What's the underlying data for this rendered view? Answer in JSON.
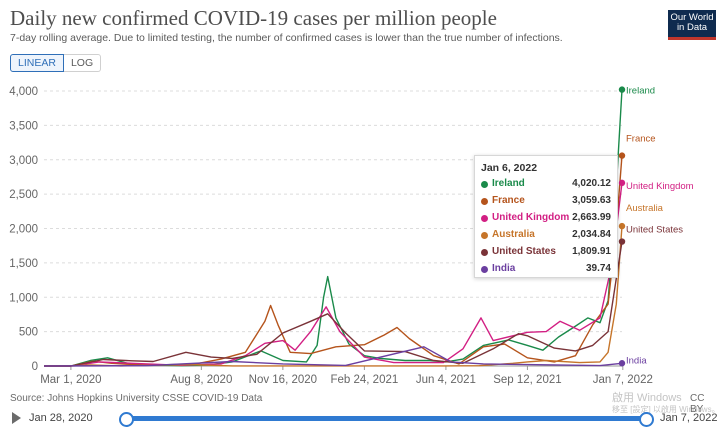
{
  "title": "Daily new confirmed COVID-19 cases per million people",
  "subtitle": "7-day rolling average. Due to limited testing, the number of confirmed cases is lower than the true number of infections.",
  "logo": {
    "line1": "Our World",
    "line2": "in Data"
  },
  "scale_toggle": {
    "linear": "LINEAR",
    "log": "LOG",
    "active": "linear"
  },
  "source": "Source: Johns Hopkins University CSSE COVID-19 Data",
  "license": "CC BY",
  "watermark": {
    "line1": "啟用 Windows",
    "line2": "移至 [設定] 以啟用 Windows。"
  },
  "timeline": {
    "start": "Jan 28, 2020",
    "end": "Jan 7, 2022"
  },
  "tooltip": {
    "date": "Jan 6, 2022",
    "rows": [
      {
        "name": "Ireland",
        "value": "4,020.12",
        "color": "#1a8a4a"
      },
      {
        "name": "France",
        "value": "3,059.63",
        "color": "#b5541c"
      },
      {
        "name": "United Kingdom",
        "value": "2,663.99",
        "color": "#d21f83"
      },
      {
        "name": "Australia",
        "value": "2,034.84",
        "color": "#c6752a"
      },
      {
        "name": "United States",
        "value": "1,809.91",
        "color": "#7a3338"
      },
      {
        "name": "India",
        "value": "39.74",
        "color": "#6b3fa0"
      }
    ]
  },
  "chart_data": {
    "type": "line",
    "title": "Daily new confirmed COVID-19 cases per million people",
    "ylim": [
      0,
      4000
    ],
    "yticks": [
      0,
      500,
      1000,
      1500,
      2000,
      2500,
      3000,
      3500,
      4000
    ],
    "ytick_labels": [
      "0",
      "500",
      "1,000",
      "1,500",
      "2,000",
      "2,500",
      "3,000",
      "3,500",
      "4,000"
    ],
    "x_range": [
      "2020-01-28",
      "2022-01-06"
    ],
    "xticks": [
      {
        "date": "2020-03-01",
        "label": "Mar 1, 2020"
      },
      {
        "date": "2020-08-08",
        "label": "Aug 8, 2020"
      },
      {
        "date": "2020-11-16",
        "label": "Nov 16, 2020"
      },
      {
        "date": "2021-02-24",
        "label": "Feb 24, 2021"
      },
      {
        "date": "2021-06-04",
        "label": "Jun 4, 2021"
      },
      {
        "date": "2021-09-12",
        "label": "Sep 12, 2021"
      },
      {
        "date": "2022-01-07",
        "label": "Jan 7, 2022"
      }
    ],
    "grid": "horizontal dashed",
    "series": [
      {
        "name": "Ireland",
        "color": "#1a8a4a",
        "end_label": "Ireland",
        "points": [
          [
            "2020-01-28",
            0
          ],
          [
            "2020-03-01",
            0
          ],
          [
            "2020-03-25",
            80
          ],
          [
            "2020-04-15",
            120
          ],
          [
            "2020-05-15",
            20
          ],
          [
            "2020-07-15",
            5
          ],
          [
            "2020-08-15",
            15
          ],
          [
            "2020-09-15",
            60
          ],
          [
            "2020-10-20",
            220
          ],
          [
            "2020-11-16",
            80
          ],
          [
            "2020-12-15",
            60
          ],
          [
            "2020-12-28",
            300
          ],
          [
            "2021-01-05",
            1000
          ],
          [
            "2021-01-10",
            1300
          ],
          [
            "2021-01-20",
            700
          ],
          [
            "2021-02-05",
            320
          ],
          [
            "2021-02-24",
            150
          ],
          [
            "2021-03-15",
            110
          ],
          [
            "2021-04-15",
            80
          ],
          [
            "2021-05-15",
            80
          ],
          [
            "2021-06-04",
            60
          ],
          [
            "2021-06-25",
            100
          ],
          [
            "2021-07-20",
            300
          ],
          [
            "2021-08-20",
            380
          ],
          [
            "2021-09-12",
            300
          ],
          [
            "2021-10-01",
            230
          ],
          [
            "2021-10-20",
            420
          ],
          [
            "2021-11-10",
            580
          ],
          [
            "2021-11-25",
            700
          ],
          [
            "2021-12-10",
            630
          ],
          [
            "2021-12-20",
            950
          ],
          [
            "2021-12-28",
            2200
          ],
          [
            "2022-01-06",
            4020
          ]
        ]
      },
      {
        "name": "France",
        "color": "#b5541c",
        "end_label": "France",
        "points": [
          [
            "2020-01-28",
            0
          ],
          [
            "2020-03-01",
            0
          ],
          [
            "2020-03-28",
            70
          ],
          [
            "2020-04-20",
            40
          ],
          [
            "2020-06-01",
            10
          ],
          [
            "2020-08-01",
            30
          ],
          [
            "2020-09-01",
            100
          ],
          [
            "2020-10-01",
            200
          ],
          [
            "2020-10-25",
            650
          ],
          [
            "2020-11-01",
            880
          ],
          [
            "2020-11-10",
            600
          ],
          [
            "2020-11-25",
            200
          ],
          [
            "2020-12-20",
            180
          ],
          [
            "2021-01-20",
            280
          ],
          [
            "2021-02-24",
            310
          ],
          [
            "2021-03-20",
            450
          ],
          [
            "2021-04-05",
            560
          ],
          [
            "2021-04-20",
            400
          ],
          [
            "2021-05-20",
            150
          ],
          [
            "2021-06-20",
            30
          ],
          [
            "2021-07-20",
            280
          ],
          [
            "2021-08-15",
            320
          ],
          [
            "2021-09-12",
            120
          ],
          [
            "2021-10-15",
            60
          ],
          [
            "2021-11-10",
            150
          ],
          [
            "2021-12-01",
            600
          ],
          [
            "2021-12-20",
            900
          ],
          [
            "2021-12-30",
            2000
          ],
          [
            "2022-01-06",
            3060
          ]
        ]
      },
      {
        "name": "United Kingdom",
        "color": "#d21f83",
        "end_label": "United Kingdom",
        "points": [
          [
            "2020-01-28",
            0
          ],
          [
            "2020-03-01",
            0
          ],
          [
            "2020-04-05",
            60
          ],
          [
            "2020-05-15",
            40
          ],
          [
            "2020-07-15",
            10
          ],
          [
            "2020-09-01",
            30
          ],
          [
            "2020-10-01",
            150
          ],
          [
            "2020-10-25",
            330
          ],
          [
            "2020-11-16",
            370
          ],
          [
            "2020-12-01",
            230
          ],
          [
            "2020-12-20",
            500
          ],
          [
            "2021-01-08",
            860
          ],
          [
            "2021-01-25",
            500
          ],
          [
            "2021-02-24",
            130
          ],
          [
            "2021-04-01",
            50
          ],
          [
            "2021-06-01",
            50
          ],
          [
            "2021-06-25",
            250
          ],
          [
            "2021-07-17",
            700
          ],
          [
            "2021-08-01",
            370
          ],
          [
            "2021-09-12",
            490
          ],
          [
            "2021-10-05",
            500
          ],
          [
            "2021-10-22",
            650
          ],
          [
            "2021-11-15",
            520
          ],
          [
            "2021-12-10",
            700
          ],
          [
            "2021-12-25",
            1500
          ],
          [
            "2022-01-06",
            2664
          ]
        ]
      },
      {
        "name": "Australia",
        "color": "#c6752a",
        "end_label": "Australia",
        "points": [
          [
            "2020-01-28",
            0
          ],
          [
            "2020-03-01",
            0
          ],
          [
            "2020-03-25",
            15
          ],
          [
            "2020-05-01",
            2
          ],
          [
            "2020-07-25",
            20
          ],
          [
            "2020-08-10",
            15
          ],
          [
            "2020-09-15",
            2
          ],
          [
            "2021-06-01",
            1
          ],
          [
            "2021-07-15",
            5
          ],
          [
            "2021-08-25",
            40
          ],
          [
            "2021-09-12",
            60
          ],
          [
            "2021-10-05",
            80
          ],
          [
            "2021-11-15",
            50
          ],
          [
            "2021-12-10",
            60
          ],
          [
            "2021-12-20",
            200
          ],
          [
            "2021-12-30",
            900
          ],
          [
            "2022-01-06",
            2035
          ]
        ]
      },
      {
        "name": "United States",
        "color": "#7a3338",
        "end_label": "United States",
        "points": [
          [
            "2020-01-28",
            0
          ],
          [
            "2020-03-01",
            0
          ],
          [
            "2020-04-10",
            95
          ],
          [
            "2020-05-15",
            75
          ],
          [
            "2020-06-10",
            65
          ],
          [
            "2020-07-20",
            200
          ],
          [
            "2020-08-20",
            130
          ],
          [
            "2020-09-15",
            110
          ],
          [
            "2020-10-15",
            170
          ],
          [
            "2020-11-16",
            480
          ],
          [
            "2020-12-20",
            650
          ],
          [
            "2021-01-10",
            760
          ],
          [
            "2021-02-01",
            480
          ],
          [
            "2021-02-24",
            220
          ],
          [
            "2021-04-15",
            210
          ],
          [
            "2021-05-20",
            80
          ],
          [
            "2021-06-25",
            40
          ],
          [
            "2021-08-01",
            250
          ],
          [
            "2021-09-01",
            470
          ],
          [
            "2021-09-12",
            440
          ],
          [
            "2021-10-15",
            260
          ],
          [
            "2021-11-10",
            220
          ],
          [
            "2021-12-01",
            300
          ],
          [
            "2021-12-20",
            500
          ],
          [
            "2022-01-06",
            1810
          ]
        ]
      },
      {
        "name": "India",
        "color": "#6b3fa0",
        "end_label": "India",
        "points": [
          [
            "2020-01-28",
            0
          ],
          [
            "2020-06-01",
            5
          ],
          [
            "2020-09-15",
            65
          ],
          [
            "2020-11-16",
            30
          ],
          [
            "2021-02-01",
            8
          ],
          [
            "2021-05-08",
            280
          ],
          [
            "2021-06-10",
            60
          ],
          [
            "2021-07-20",
            30
          ],
          [
            "2021-09-12",
            20
          ],
          [
            "2021-12-10",
            6
          ],
          [
            "2022-01-06",
            40
          ]
        ]
      }
    ]
  }
}
